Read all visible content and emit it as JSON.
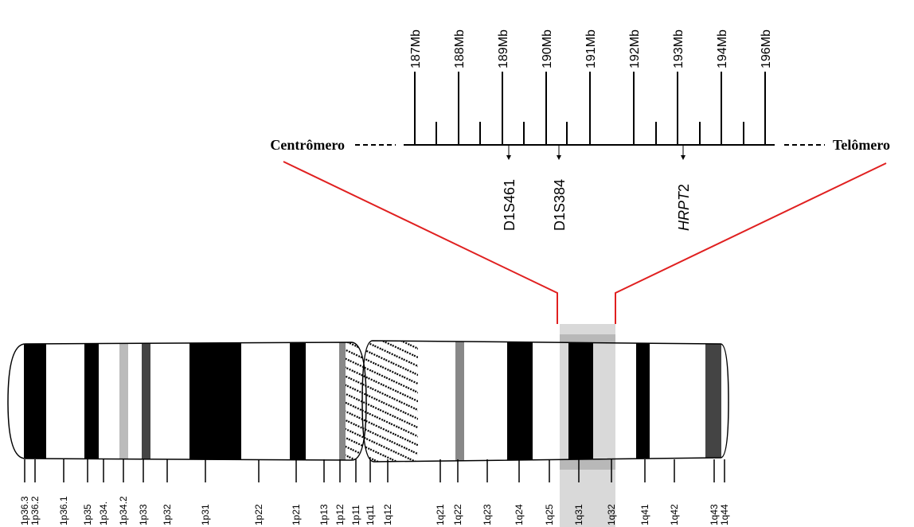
{
  "scale": {
    "labels": [
      "187Mb",
      "188Mb",
      "189Mb",
      "190Mb",
      "191Mb",
      "192Mb",
      "193Mb",
      "194Mb",
      "196Mb"
    ],
    "left_end": "Centrômero",
    "right_end": "Telômero"
  },
  "markers": [
    {
      "label": "D1S461"
    },
    {
      "label": "D1S384"
    },
    {
      "label": "HRPT",
      "suffix": "2"
    }
  ],
  "bands": [
    "1p36.3",
    "1p36.2",
    "1p36.1",
    "1p35",
    "1p34.",
    "1p34.2",
    "1p33",
    "1p32",
    "1p31",
    "1p22",
    "1p21",
    "1p13",
    "1p12",
    "1p11",
    "1q11",
    "1q12",
    "1q21",
    "1q22",
    "1q23",
    "1q24",
    "1q25",
    "1q31",
    "1q32",
    "1q41",
    "1q42",
    "1q43",
    "1q44"
  ]
}
